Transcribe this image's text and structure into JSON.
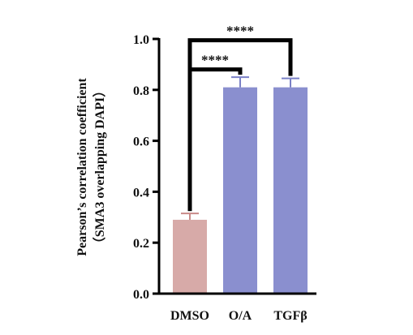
{
  "chart_data": {
    "type": "bar",
    "categories": [
      "DMSO",
      "O/A",
      "TGFβ"
    ],
    "values": [
      0.29,
      0.81,
      0.81
    ],
    "errors": [
      0.025,
      0.04,
      0.035
    ],
    "colors": [
      "#d7aaa8",
      "#8a8fcf",
      "#8a8fcf"
    ],
    "error_colors": [
      "#c98a88",
      "#7a80c6",
      "#7a80c6"
    ],
    "ylabel_line1": "Pearson’s correlation coefficient",
    "ylabel_line2": "（SMA3 overlapping DAPI）",
    "ylim": [
      0,
      1.0
    ],
    "yticks": [
      "0.0",
      "0.2",
      "0.4",
      "0.6",
      "0.8",
      "1.0"
    ],
    "grid": false,
    "significance": [
      {
        "from": 0,
        "to": 1,
        "label": "****",
        "y": 0.88
      },
      {
        "from": 0,
        "to": 2,
        "label": "****",
        "y": 0.995
      }
    ]
  }
}
